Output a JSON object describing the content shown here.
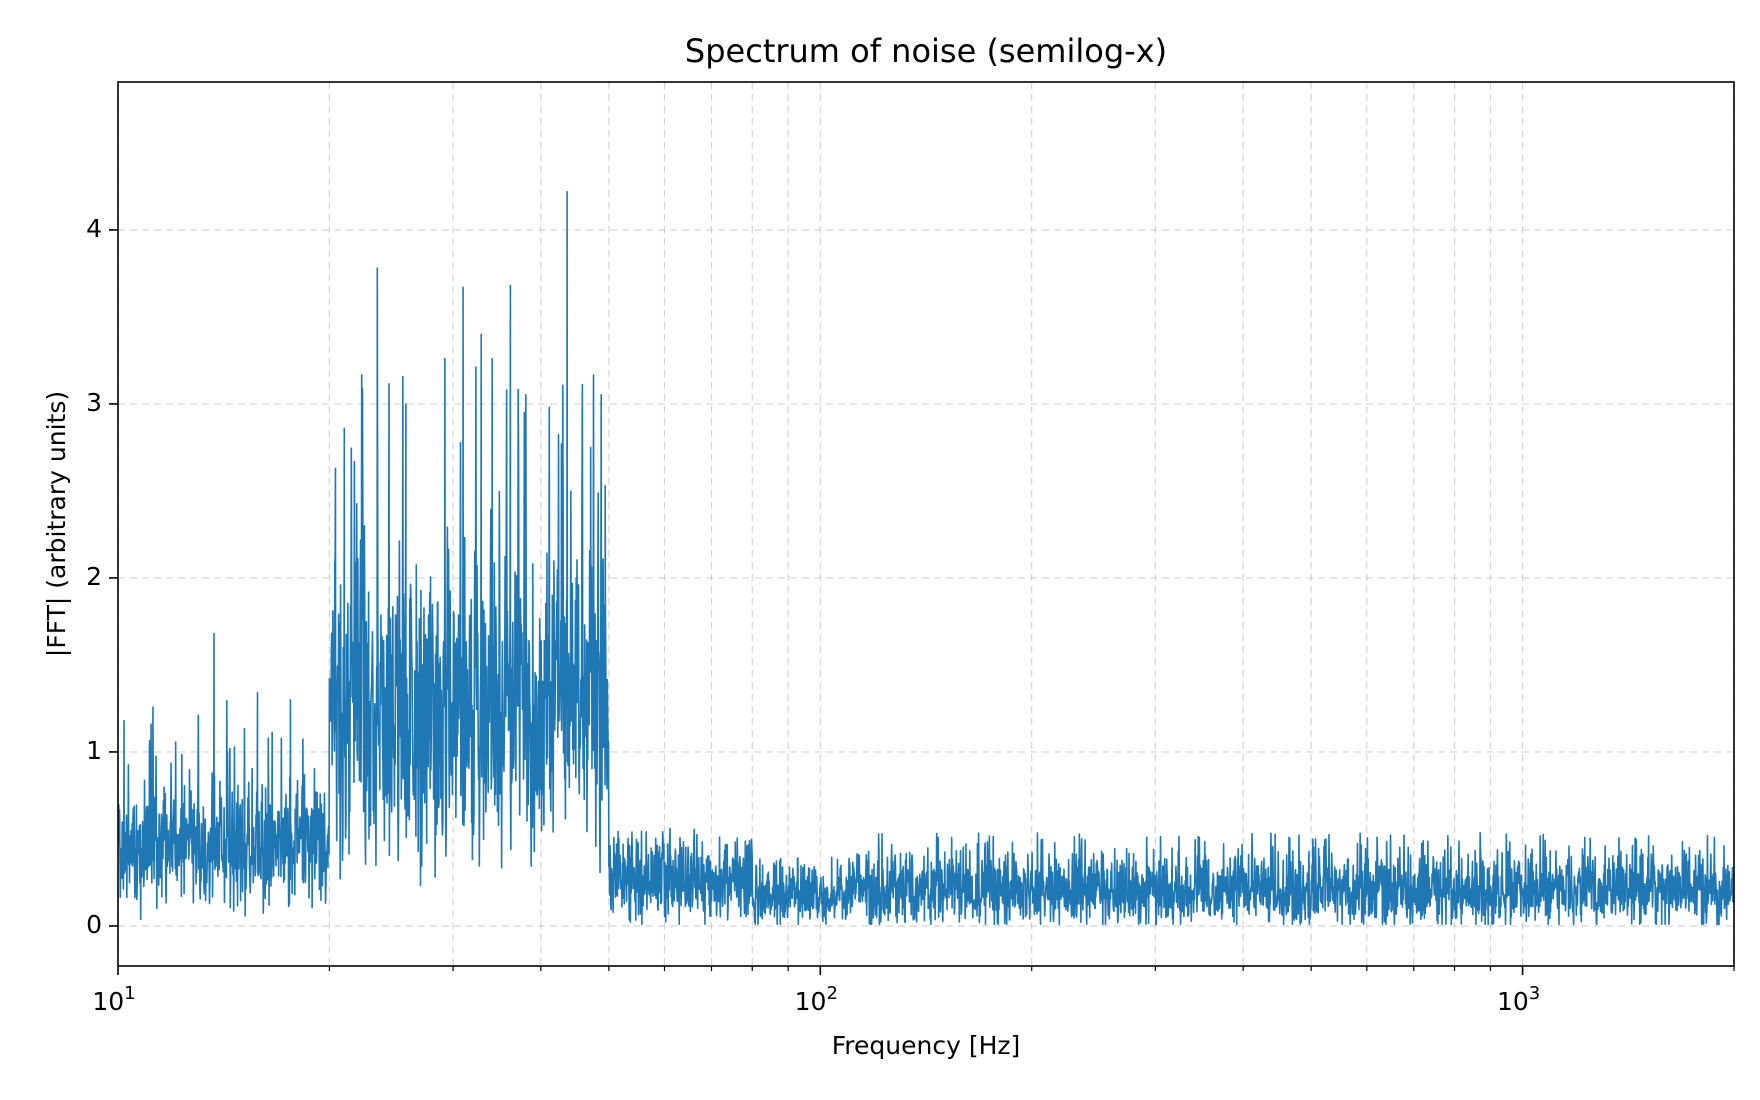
{
  "chart_data": {
    "type": "line",
    "title": "Spectrum of noise (semilog-x)",
    "xlabel": "Frequency [Hz]",
    "ylabel": "|FFT| (arbitrary units)",
    "xscale": "log",
    "xlim": [
      10,
      2000
    ],
    "ylim": [
      -0.23,
      4.85
    ],
    "grid": true,
    "line_color": "#1f77b4",
    "x_ticks": [
      {
        "value": 10,
        "base": "10",
        "exp": "1"
      },
      {
        "value": 100,
        "base": "10",
        "exp": "2"
      },
      {
        "value": 1000,
        "base": "10",
        "exp": "3"
      }
    ],
    "y_ticks": [
      {
        "value": 0,
        "label": "0"
      },
      {
        "value": 1,
        "label": "1"
      },
      {
        "value": 2,
        "label": "2"
      },
      {
        "value": 3,
        "label": "3"
      },
      {
        "value": 4,
        "label": "4"
      }
    ],
    "bands": [
      {
        "f_start": 10,
        "f_end": 20,
        "mean": 0.45,
        "spread": 0.3,
        "max": 1.7
      },
      {
        "f_start": 20,
        "f_end": 50,
        "mean": 1.25,
        "spread": 0.75,
        "max": 4.22
      },
      {
        "f_start": 50,
        "f_end": 80,
        "mean": 0.25,
        "spread": 0.2,
        "max": 0.65
      },
      {
        "f_start": 80,
        "f_end": 110,
        "mean": 0.17,
        "spread": 0.15,
        "max": 0.45
      },
      {
        "f_start": 110,
        "f_end": 2000,
        "mean": 0.2,
        "spread": 0.18,
        "max": 0.64
      }
    ],
    "peaks": [
      {
        "x": 10.2,
        "y": 1.18
      },
      {
        "x": 13.7,
        "y": 1.68
      },
      {
        "x": 15.8,
        "y": 1.34
      },
      {
        "x": 17.6,
        "y": 1.3
      },
      {
        "x": 20.4,
        "y": 2.63
      },
      {
        "x": 21.0,
        "y": 2.86
      },
      {
        "x": 23.4,
        "y": 3.78
      },
      {
        "x": 25.7,
        "y": 3.0
      },
      {
        "x": 29.2,
        "y": 3.26
      },
      {
        "x": 31.0,
        "y": 3.67
      },
      {
        "x": 32.9,
        "y": 3.4
      },
      {
        "x": 34.1,
        "y": 3.26
      },
      {
        "x": 36.2,
        "y": 3.68
      },
      {
        "x": 42.8,
        "y": 2.77
      },
      {
        "x": 43.6,
        "y": 4.22
      },
      {
        "x": 47.1,
        "y": 2.75
      },
      {
        "x": 49.4,
        "y": 2.53
      }
    ]
  }
}
